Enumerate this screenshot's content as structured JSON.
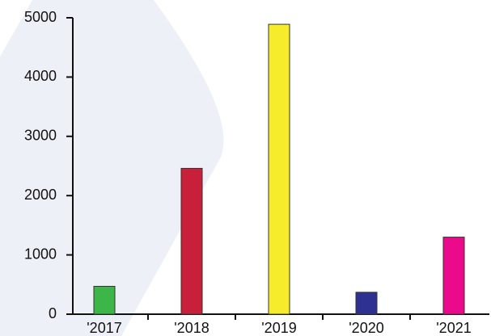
{
  "chart_data": {
    "type": "bar",
    "categories": [
      "'2017",
      "'2018",
      "'2019",
      "'2020",
      "'2021"
    ],
    "values": [
      470,
      2460,
      4890,
      370,
      1300
    ],
    "colors": [
      "#3cb648",
      "#c8203a",
      "#f6ec2c",
      "#2e3192",
      "#ec0a8c"
    ],
    "ylim": [
      0,
      5000
    ],
    "yticks": [
      0,
      1000,
      2000,
      3000,
      4000,
      5000
    ],
    "grid": false
  }
}
